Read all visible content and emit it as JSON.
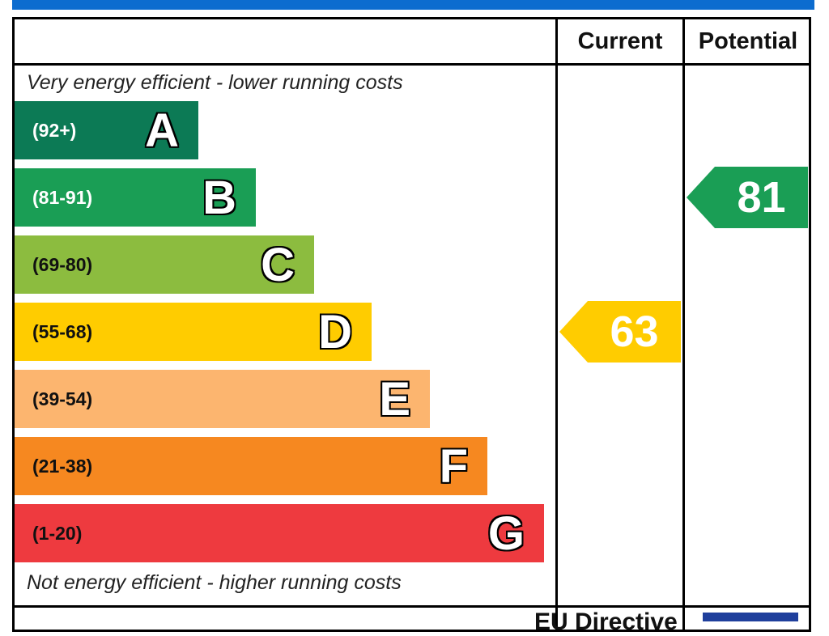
{
  "header": {
    "current_label": "Current",
    "potential_label": "Potential"
  },
  "captions": {
    "top": "Very energy efficient - lower running costs",
    "bottom": "Not energy efficient - higher running costs"
  },
  "colors": {
    "top_strip": "#0c6ccf",
    "frame": "#000000"
  },
  "chart_data": {
    "type": "bar",
    "bands": [
      {
        "letter": "A",
        "range": "(92+)",
        "min": 92,
        "max": 100,
        "color": "#0c7a55",
        "text_color": "#ffffff"
      },
      {
        "letter": "B",
        "range": "(81-91)",
        "min": 81,
        "max": 91,
        "color": "#1a9e55",
        "text_color": "#ffffff"
      },
      {
        "letter": "C",
        "range": "(69-80)",
        "min": 69,
        "max": 80,
        "color": "#8cbc3f",
        "text_color": "#111111"
      },
      {
        "letter": "D",
        "range": "(55-68)",
        "min": 55,
        "max": 68,
        "color": "#ffcc00",
        "text_color": "#111111"
      },
      {
        "letter": "E",
        "range": "(39-54)",
        "min": 39,
        "max": 54,
        "color": "#fcb56f",
        "text_color": "#111111"
      },
      {
        "letter": "F",
        "range": "(21-38)",
        "min": 21,
        "max": 38,
        "color": "#f68820",
        "text_color": "#111111"
      },
      {
        "letter": "G",
        "range": "(1-20)",
        "min": 1,
        "max": 20,
        "color": "#ee3a3f",
        "text_color": "#111111"
      }
    ],
    "current": {
      "value": 63,
      "band": "D",
      "color": "#ffcc00"
    },
    "potential": {
      "value": 81,
      "band": "B",
      "color": "#1a9e55"
    }
  },
  "footer": {
    "text": "EU Directive"
  }
}
